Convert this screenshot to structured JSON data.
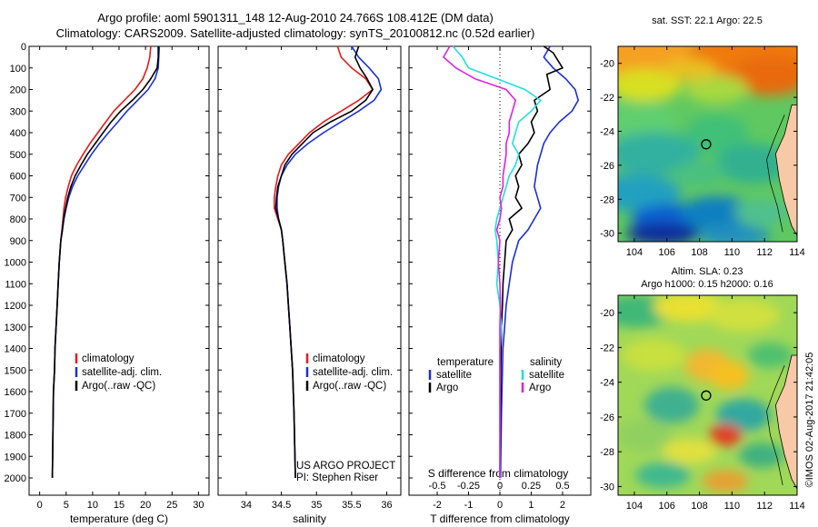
{
  "header": {
    "line1": "Argo profile: aoml 5901311_148 12-Aug-2010 24.766S 108.412E (DM data)",
    "line2": "Climatology: CARS2009. Satellite-adjusted climatology: synTS_20100812.nc (0.52d earlier)"
  },
  "credit": "©IMOS 02-Aug-2017 21:42:05",
  "chart_data": [
    {
      "type": "line",
      "name": "temperature-panel",
      "xlabel": "temperature (deg C)",
      "xlim": [
        -2,
        32
      ],
      "xticks": [
        0,
        5,
        10,
        15,
        20,
        25,
        30
      ],
      "ylim": [
        0,
        2080
      ],
      "yticks": [
        0,
        100,
        200,
        300,
        400,
        500,
        600,
        700,
        800,
        900,
        1000,
        1100,
        1200,
        1300,
        1400,
        1500,
        1600,
        1700,
        1800,
        1900,
        2000
      ],
      "legend": [
        "climatology",
        "satellite-adj. clim.",
        "Argo(..raw -QC)"
      ],
      "series": [
        {
          "name": "climatology",
          "color": "#e41a1c",
          "x": [
            21.0,
            20.8,
            20.3,
            19.5,
            18.0,
            16.0,
            14.0,
            12.5,
            11.0,
            9.5,
            8.2,
            7.0,
            6.0,
            5.4,
            4.9,
            4.6,
            4.4,
            4.2,
            4.0,
            3.7,
            3.5,
            3.3,
            3.1,
            2.9,
            2.8,
            2.6,
            2.5,
            2.4
          ],
          "y": [
            0,
            50,
            100,
            150,
            200,
            250,
            300,
            350,
            400,
            450,
            500,
            550,
            600,
            650,
            700,
            750,
            800,
            850,
            900,
            1000,
            1100,
            1200,
            1300,
            1400,
            1500,
            1600,
            1800,
            2000
          ]
        },
        {
          "name": "satellite-adj. clim.",
          "color": "#1a2fd6",
          "x": [
            22.6,
            22.5,
            22.4,
            21.8,
            20.5,
            18.5,
            16.5,
            14.8,
            13.0,
            11.3,
            9.8,
            8.5,
            7.2,
            6.2,
            5.5,
            5.0,
            4.6,
            4.3,
            4.0,
            3.7,
            3.5,
            3.3,
            3.1,
            2.9,
            2.8,
            2.6,
            2.5,
            2.4
          ],
          "y": [
            0,
            50,
            100,
            150,
            200,
            250,
            300,
            350,
            400,
            450,
            500,
            550,
            600,
            650,
            700,
            750,
            800,
            850,
            900,
            1000,
            1100,
            1200,
            1300,
            1400,
            1500,
            1600,
            1800,
            2000
          ]
        },
        {
          "name": "Argo(..raw -QC)",
          "color": "#000000",
          "x": [
            22.4,
            22.4,
            22.2,
            21.0,
            19.5,
            17.5,
            15.3,
            13.5,
            12.0,
            10.5,
            9.0,
            7.8,
            6.7,
            5.9,
            5.3,
            4.9,
            4.5,
            4.3,
            4.0,
            3.7,
            3.5,
            3.3,
            3.1,
            2.9,
            2.8,
            2.6,
            2.5,
            2.4
          ],
          "y": [
            0,
            50,
            100,
            150,
            200,
            250,
            300,
            350,
            400,
            450,
            500,
            550,
            600,
            650,
            700,
            750,
            800,
            850,
            900,
            1000,
            1100,
            1200,
            1300,
            1400,
            1500,
            1600,
            1800,
            2000
          ]
        }
      ]
    },
    {
      "type": "line",
      "name": "salinity-panel",
      "xlabel": "salinity",
      "xlim": [
        33.6,
        36.2
      ],
      "xticks": [
        34,
        34.5,
        35,
        35.5,
        36
      ],
      "xticklabels": [
        "34",
        "34.5",
        "35",
        "35.5",
        "36"
      ],
      "ylim": [
        0,
        2080
      ],
      "legend": [
        "climatology",
        "satellite-adj. clim.",
        "Argo(..raw -QC)"
      ],
      "annotation": [
        "US ARGO PROJECT",
        "PI: Stephen Riser"
      ],
      "series": [
        {
          "name": "climatology",
          "color": "#e41a1c",
          "x": [
            35.3,
            35.35,
            35.5,
            35.7,
            35.8,
            35.6,
            35.35,
            35.1,
            34.9,
            34.75,
            34.6,
            34.5,
            34.45,
            34.42,
            34.4,
            34.4,
            34.45,
            34.5,
            34.52,
            34.55,
            34.58,
            34.6,
            34.62,
            34.64,
            34.66,
            34.68,
            34.7
          ],
          "y": [
            0,
            50,
            100,
            150,
            200,
            250,
            300,
            350,
            400,
            450,
            500,
            550,
            600,
            650,
            700,
            750,
            800,
            850,
            900,
            1000,
            1100,
            1200,
            1300,
            1400,
            1500,
            1700,
            2000
          ]
        },
        {
          "name": "satellite-adj. clim.",
          "color": "#1a2fd6",
          "x": [
            35.5,
            35.6,
            35.75,
            35.88,
            35.92,
            35.82,
            35.6,
            35.35,
            35.1,
            34.88,
            34.7,
            34.58,
            34.5,
            34.46,
            34.44,
            34.44,
            34.46,
            34.5,
            34.52,
            34.55,
            34.58,
            34.6,
            34.62,
            34.64,
            34.66,
            34.68,
            34.7
          ],
          "y": [
            0,
            50,
            100,
            150,
            200,
            250,
            300,
            350,
            400,
            450,
            500,
            550,
            600,
            650,
            700,
            750,
            800,
            850,
            900,
            1000,
            1100,
            1200,
            1300,
            1400,
            1500,
            1700,
            2000
          ]
        },
        {
          "name": "Argo(..raw -QC)",
          "color": "#000000",
          "x": [
            35.6,
            35.55,
            35.62,
            35.72,
            35.8,
            35.7,
            35.5,
            35.2,
            34.95,
            34.8,
            34.65,
            34.55,
            34.5,
            34.45,
            34.43,
            34.42,
            34.46,
            34.5,
            34.52,
            34.55,
            34.58,
            34.6,
            34.62,
            34.64,
            34.66,
            34.68,
            34.7
          ],
          "y": [
            0,
            50,
            100,
            150,
            200,
            250,
            300,
            350,
            400,
            450,
            500,
            550,
            600,
            650,
            700,
            750,
            800,
            850,
            900,
            1000,
            1100,
            1200,
            1300,
            1400,
            1500,
            1700,
            2000
          ]
        }
      ]
    },
    {
      "type": "line",
      "name": "difference-panel",
      "xlabel": "T difference from climatology",
      "xlabel_top": "S difference from climatology",
      "xlim": [
        -2.9,
        2.9
      ],
      "xticks_T": [
        -2,
        -1,
        0,
        1,
        2
      ],
      "xticks_S": [
        "-0.5",
        "-0.25",
        "0",
        "0.25",
        "0.5"
      ],
      "ylim": [
        0,
        2080
      ],
      "legend_temperature_title": "temperature",
      "legend_salinity_title": "salinity",
      "legend": [
        "satellite",
        "Argo",
        "satellite",
        "Argo"
      ],
      "series": [
        {
          "name": "temperature satellite",
          "color": "#1a2fd6",
          "x": [
            1.6,
            1.4,
            1.7,
            2.1,
            2.4,
            2.5,
            2.3,
            1.9,
            1.6,
            1.4,
            1.3,
            1.2,
            1.15,
            1.1,
            1.2,
            1.3,
            1.1,
            0.9,
            0.6,
            0.4,
            0.3,
            0.2,
            0.15,
            0.1,
            0.08,
            0.05,
            0.02
          ],
          "y": [
            0,
            50,
            100,
            150,
            200,
            250,
            300,
            350,
            400,
            450,
            500,
            550,
            600,
            650,
            700,
            750,
            800,
            850,
            900,
            1000,
            1100,
            1200,
            1300,
            1400,
            1500,
            1700,
            2000
          ]
        },
        {
          "name": "temperature Argo",
          "color": "#000000",
          "x": [
            1.4,
            1.7,
            2.0,
            1.5,
            1.6,
            1.1,
            1.2,
            1.0,
            1.1,
            0.9,
            0.6,
            0.7,
            0.5,
            0.6,
            0.5,
            0.7,
            0.3,
            0.4,
            0.2,
            0.15,
            0.1,
            0.08,
            0.05,
            0.04,
            0.03,
            0.02,
            0.0
          ],
          "y": [
            0,
            30,
            100,
            130,
            200,
            250,
            300,
            350,
            400,
            450,
            500,
            550,
            600,
            650,
            700,
            750,
            800,
            850,
            900,
            1000,
            1100,
            1200,
            1300,
            1400,
            1500,
            1700,
            2000
          ]
        },
        {
          "name": "salinity satellite",
          "color": "#22dde0",
          "x": [
            -1.5,
            -1.2,
            -1.0,
            -0.1,
            0.8,
            1.3,
            1.0,
            0.6,
            0.5,
            0.4,
            0.6,
            0.5,
            0.3,
            0.2,
            0.1,
            0.0,
            -0.1,
            -0.15,
            -0.1,
            -0.05,
            -0.1,
            0.0,
            0.05,
            0.0,
            0.0,
            0.0,
            0.0
          ],
          "y": [
            0,
            50,
            100,
            150,
            200,
            250,
            300,
            350,
            400,
            450,
            500,
            550,
            600,
            650,
            700,
            750,
            800,
            850,
            900,
            1000,
            1100,
            1200,
            1300,
            1400,
            1500,
            1700,
            2000
          ]
        },
        {
          "name": "salinity Argo",
          "color": "#dd22dd",
          "x": [
            -1.6,
            -1.8,
            -1.4,
            -0.8,
            0.2,
            0.5,
            0.4,
            0.3,
            0.3,
            0.2,
            0.2,
            0.15,
            0.1,
            0.1,
            0.0,
            0.05,
            0.0,
            -0.1,
            0.0,
            -0.05,
            0.0,
            0.02,
            0.0,
            0.0,
            0.0,
            0.0,
            0.0
          ],
          "y": [
            0,
            50,
            100,
            150,
            200,
            250,
            300,
            350,
            400,
            450,
            500,
            550,
            600,
            650,
            700,
            750,
            800,
            850,
            900,
            1000,
            1100,
            1200,
            1300,
            1400,
            1500,
            1700,
            2000
          ]
        }
      ]
    },
    {
      "type": "heatmap",
      "name": "sst-map",
      "title": "sat. SST: 22.1  Argo: 22.5",
      "xlim": [
        103,
        114
      ],
      "ylim": [
        -30.5,
        -19
      ],
      "xticks": [
        104,
        106,
        108,
        110,
        112,
        114
      ],
      "yticks": [
        -20,
        -22,
        -24,
        -26,
        -28,
        -30
      ],
      "marker": {
        "lon": 108.412,
        "lat": -24.766
      }
    },
    {
      "type": "heatmap",
      "name": "sla-map",
      "title": "Altim. SLA: 0.23",
      "subtitle": "Argo h1000: 0.15 h2000: 0.16",
      "xlim": [
        103,
        114
      ],
      "ylim": [
        -30.5,
        -19
      ],
      "xticks": [
        104,
        106,
        108,
        110,
        112,
        114
      ],
      "yticks": [
        -20,
        -22,
        -24,
        -26,
        -28,
        -30
      ],
      "marker": {
        "lon": 108.412,
        "lat": -24.766
      }
    }
  ]
}
